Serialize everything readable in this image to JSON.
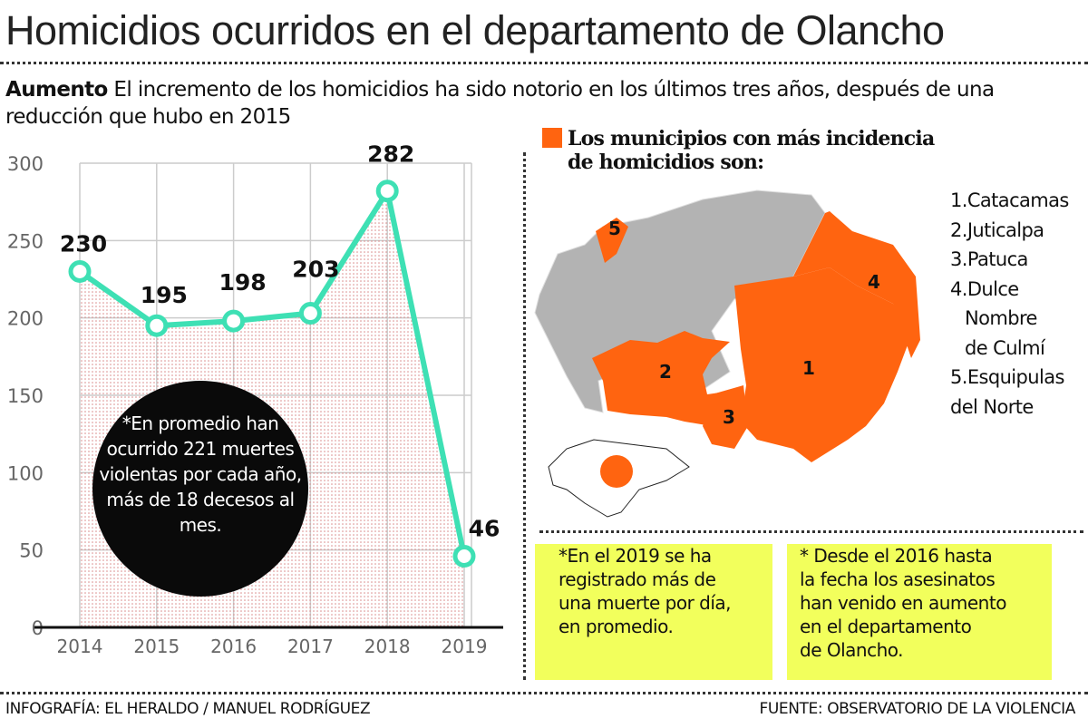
{
  "title": "Homicidios ocurridos en el departamento de Olancho",
  "subtitle": {
    "lead": "Aumento",
    "text": " El incremento de los homicidios ha sido notorio en los últimos tres años, después de una reducción que hubo en 2015"
  },
  "chart_data": {
    "type": "line",
    "categories": [
      "2014",
      "2015",
      "2016",
      "2017",
      "2018",
      "2019"
    ],
    "values": [
      230,
      195,
      198,
      203,
      282,
      46
    ],
    "data_labels": [
      "230",
      "195",
      "198",
      "203",
      "282",
      "46"
    ],
    "ylim": [
      0,
      300
    ],
    "yticks": [
      "0",
      "50",
      "100",
      "150",
      "200",
      "250",
      "300"
    ],
    "grid": true,
    "area_fill": "dotted pink",
    "line_color": "#3ee0b4"
  },
  "bubble": "*En promedio han ocurrido 221 muertes violentas por cada año, más de 18 decesos al mes.",
  "map": {
    "heading_line1": "Los municipios con más incidencia",
    "heading_line2": "de homicidios son:",
    "highlight_color": "#ff6410",
    "region_labels": [
      "1",
      "2",
      "3",
      "4",
      "5"
    ],
    "legend": [
      "1.Catacamas",
      "2.Juticalpa",
      "3.Patuca",
      "4.Dulce",
      "Nombre",
      "de Culmí",
      "5.Esquipulas",
      "del Norte"
    ]
  },
  "notes": [
    [
      "*En el 2019 se ha",
      "registrado más de",
      "una muerte por día,",
      "en promedio."
    ],
    [
      "* Desde el 2016 hasta",
      "la fecha los asesinatos",
      "han venido en aumento",
      "en el departamento",
      "de Olancho."
    ]
  ],
  "footer": {
    "credit": "INFOGRAFÍA: EL HERALDO / MANUEL RODRÍGUEZ",
    "source": "FUENTE: OBSERVATORIO DE LA VIOLENCIA"
  }
}
